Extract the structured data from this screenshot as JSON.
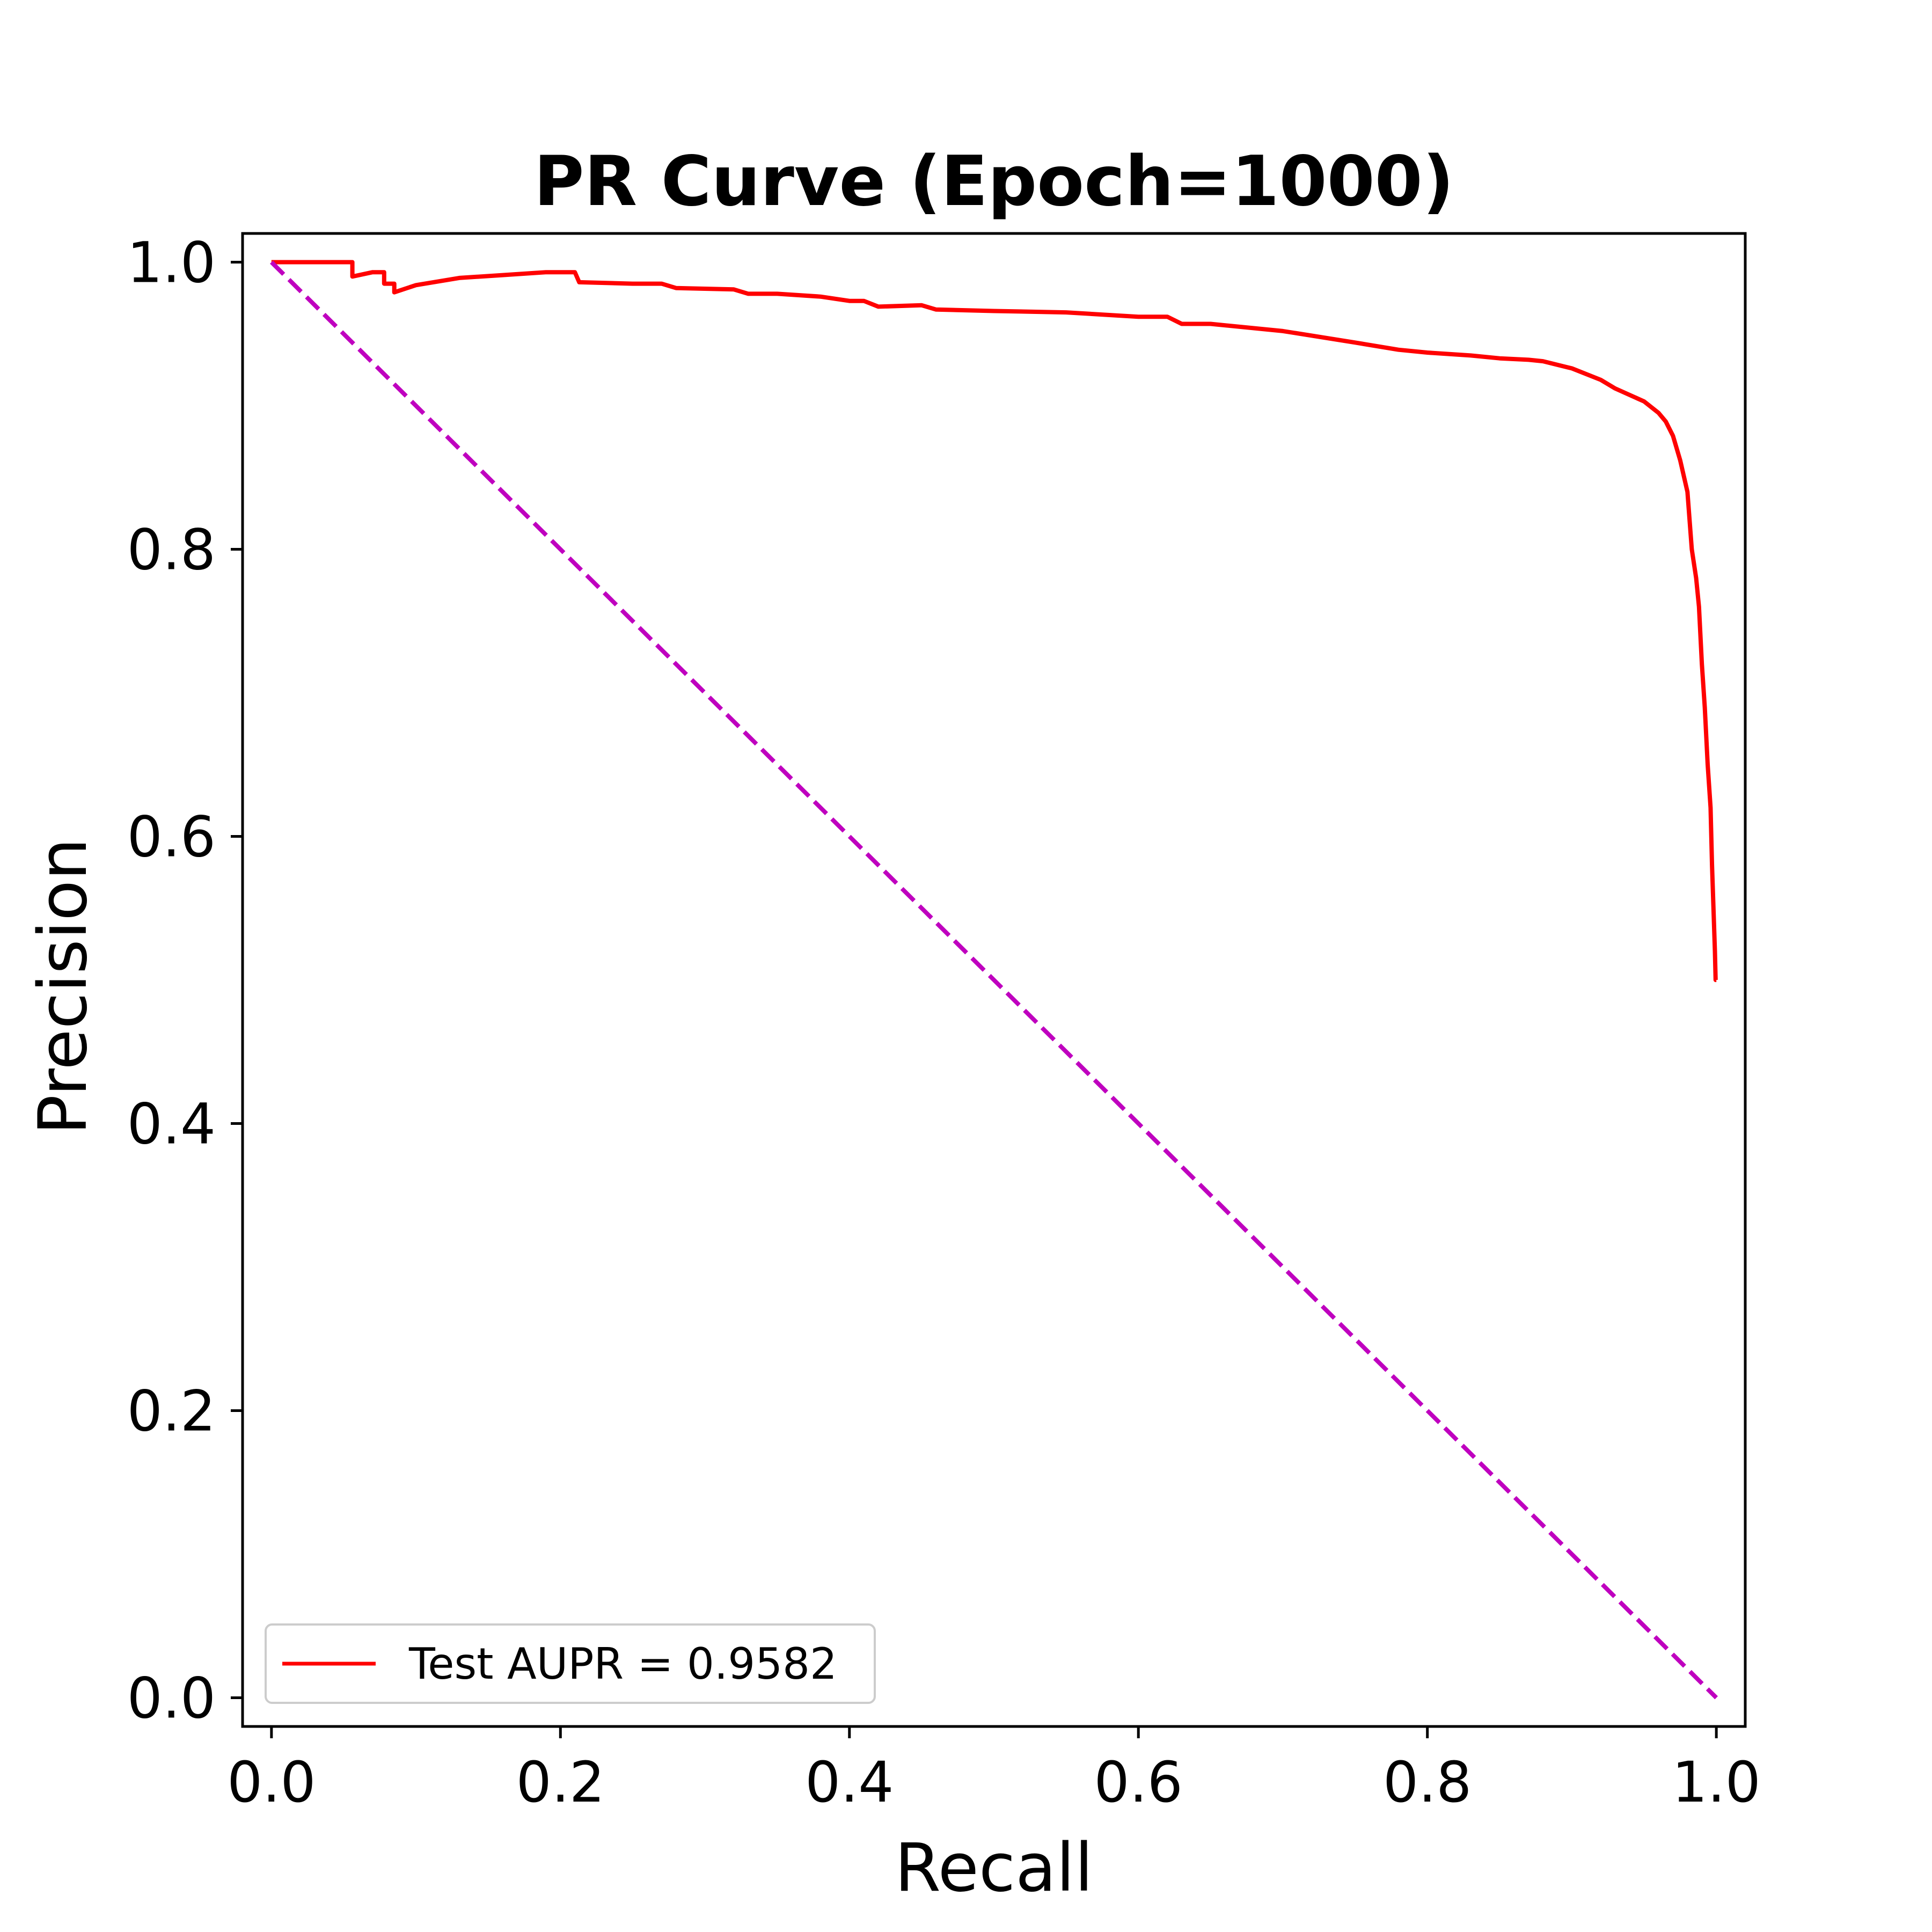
{
  "chart_data": {
    "type": "line",
    "title": "PR Curve (Epoch=1000)",
    "xlabel": "Recall",
    "ylabel": "Precision",
    "xlim": [
      -0.02,
      1.02
    ],
    "ylim": [
      -0.02,
      1.02
    ],
    "xticks": [
      "0.0",
      "0.2",
      "0.4",
      "0.6",
      "0.8",
      "1.0"
    ],
    "yticks": [
      "0.0",
      "0.2",
      "0.4",
      "0.6",
      "0.8",
      "1.0"
    ],
    "grid": false,
    "legend": {
      "position": "lower-left",
      "entries": [
        "Test AUPR = 0.9582"
      ]
    },
    "series": [
      {
        "name": "Test AUPR = 0.9582",
        "color": "#ff0000",
        "style": "solid",
        "x": [
          0.0,
          0.056,
          0.056,
          0.07,
          0.078,
          0.078,
          0.085,
          0.085,
          0.1,
          0.13,
          0.16,
          0.19,
          0.21,
          0.213,
          0.213,
          0.25,
          0.27,
          0.28,
          0.32,
          0.33,
          0.35,
          0.38,
          0.4,
          0.41,
          0.42,
          0.45,
          0.46,
          0.5,
          0.55,
          0.6,
          0.62,
          0.63,
          0.65,
          0.7,
          0.75,
          0.78,
          0.8,
          0.83,
          0.85,
          0.87,
          0.88,
          0.9,
          0.92,
          0.93,
          0.95,
          0.96,
          0.965,
          0.97,
          0.975,
          0.98,
          0.983,
          0.986,
          0.988,
          0.99,
          0.992,
          0.994,
          0.996,
          0.997,
          0.998,
          0.999,
          0.9995,
          1.0
        ],
        "y": [
          1.0,
          1.0,
          0.99,
          0.993,
          0.993,
          0.985,
          0.985,
          0.979,
          0.984,
          0.989,
          0.991,
          0.993,
          0.993,
          0.986,
          0.986,
          0.985,
          0.985,
          0.982,
          0.981,
          0.978,
          0.978,
          0.976,
          0.973,
          0.973,
          0.969,
          0.97,
          0.967,
          0.966,
          0.965,
          0.962,
          0.962,
          0.957,
          0.957,
          0.952,
          0.944,
          0.939,
          0.937,
          0.935,
          0.933,
          0.932,
          0.931,
          0.926,
          0.918,
          0.912,
          0.903,
          0.895,
          0.889,
          0.879,
          0.862,
          0.84,
          0.8,
          0.78,
          0.76,
          0.72,
          0.69,
          0.65,
          0.62,
          0.58,
          0.55,
          0.52,
          0.5,
          0.5
        ]
      },
      {
        "color": "#bf00bf",
        "style": "dashed",
        "x": [
          0.0,
          1.0
        ],
        "y": [
          1.0,
          0.0
        ]
      }
    ]
  }
}
